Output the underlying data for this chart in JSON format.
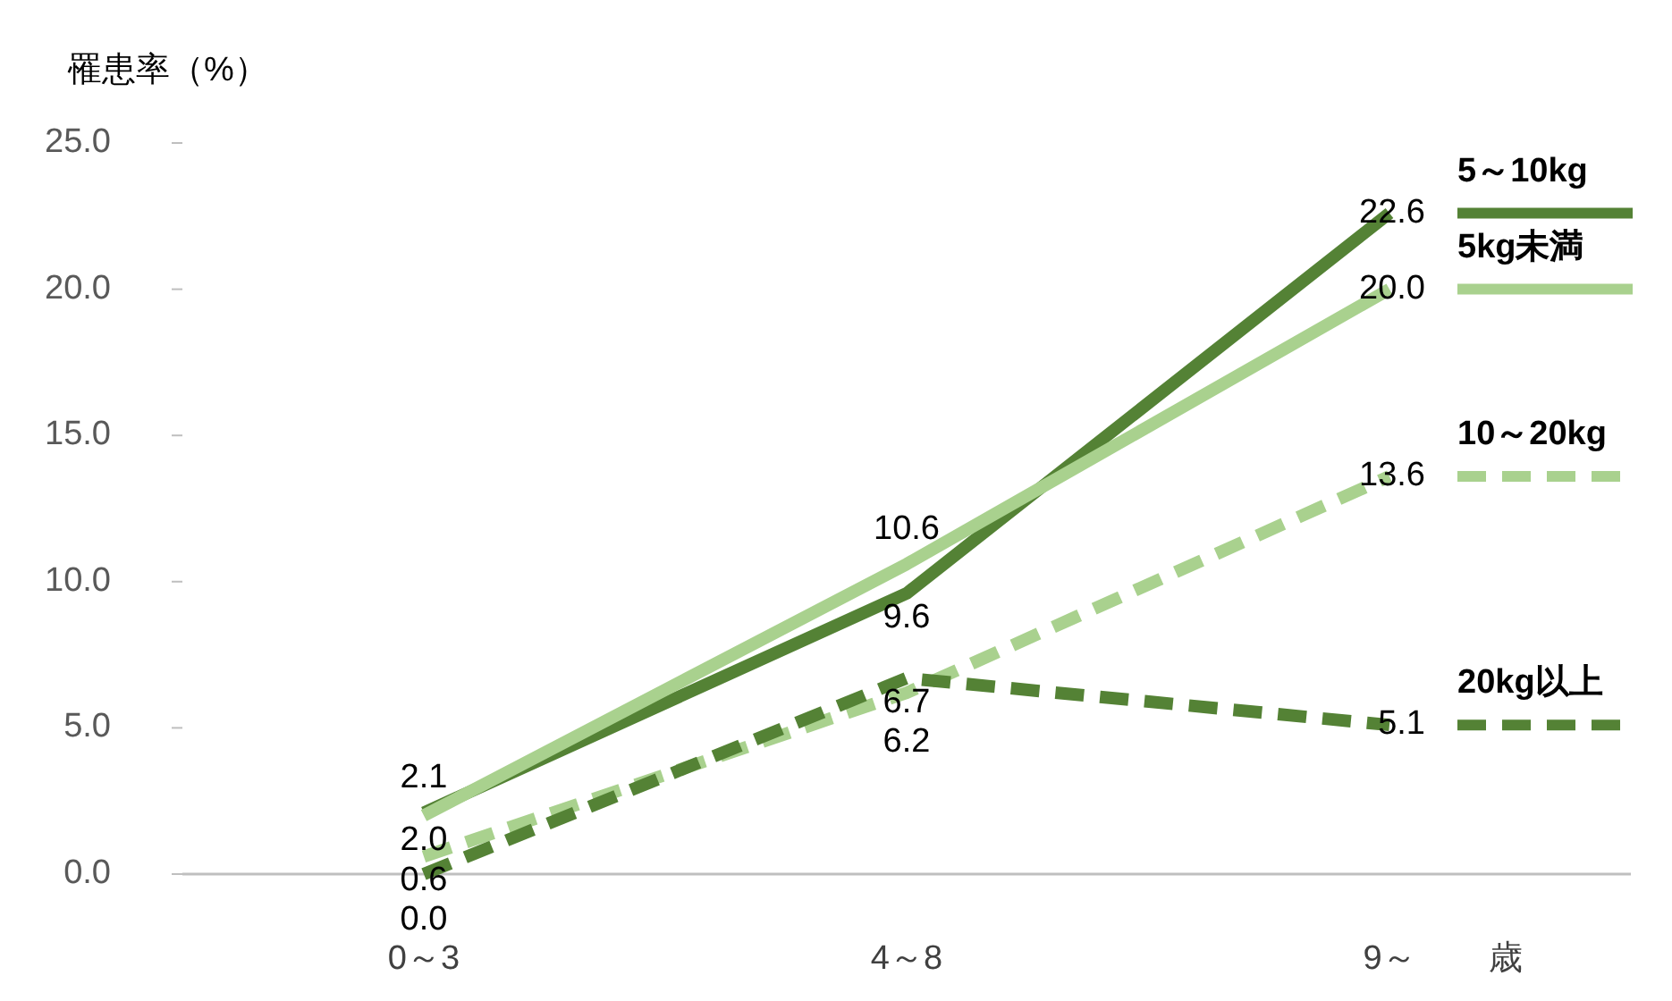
{
  "chart_data": {
    "type": "line",
    "ylabel": "罹患率（%）",
    "xlabel": "歳",
    "categories": [
      "0～3",
      "4～8",
      "9～"
    ],
    "series": [
      {
        "name": "5～10kg",
        "color": "#548235",
        "line_style": "solid",
        "values": [
          2.1,
          9.6,
          22.6
        ],
        "value_labels": [
          "2.1",
          "9.6",
          "22.6"
        ]
      },
      {
        "name": "5kg未満",
        "color": "#a9d18e",
        "line_style": "solid",
        "values": [
          2.0,
          10.6,
          20.0
        ],
        "value_labels": [
          "2.0",
          "10.6",
          "20.0"
        ]
      },
      {
        "name": "10～20kg",
        "color": "#a9d18e",
        "line_style": "dashed",
        "values": [
          0.6,
          6.2,
          13.6
        ],
        "value_labels": [
          "0.6",
          "6.2",
          "13.6"
        ]
      },
      {
        "name": "20kg以上",
        "color": "#548235",
        "line_style": "dashed",
        "values": [
          0.0,
          6.7,
          5.1
        ],
        "value_labels": [
          "0.0",
          "6.7",
          "5.1"
        ]
      }
    ],
    "ylim": [
      0,
      25
    ],
    "yticks": [
      {
        "value": 0,
        "label": "0.0"
      },
      {
        "value": 5,
        "label": "5.0"
      },
      {
        "value": 10,
        "label": "10.0"
      },
      {
        "value": 15,
        "label": "15.0"
      },
      {
        "value": 20,
        "label": "20.0"
      },
      {
        "value": 25,
        "label": "25.0"
      }
    ],
    "legend": "right",
    "grid": false,
    "marker": "none"
  }
}
